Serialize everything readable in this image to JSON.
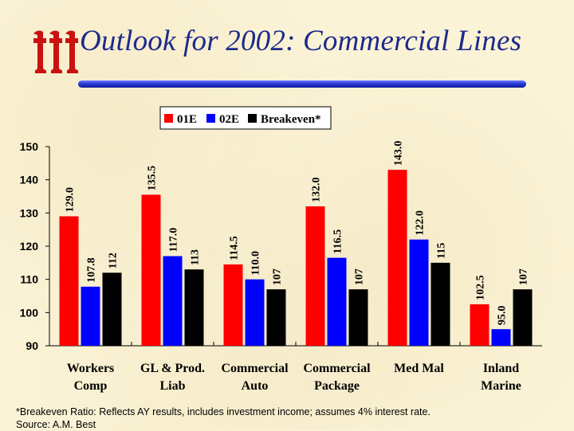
{
  "title": "Outlook for 2002: Commercial Lines",
  "footnote": "*Breakeven Ratio: Reflects AY results, includes investment income; assumes 4% interest rate.",
  "source": "Source:  A.M. Best",
  "colors": {
    "title": "#1d2a8a",
    "bar_01E": "#ff0000",
    "bar_02E": "#0000ff",
    "bar_breakeven": "#000000",
    "logo": "#cc1111",
    "title_bar": "#2a3ad8"
  },
  "chart_data": {
    "type": "bar",
    "title": "",
    "xlabel": "",
    "ylabel": "",
    "ylim": [
      90,
      150
    ],
    "yticks": [
      90,
      100,
      110,
      120,
      130,
      140,
      150
    ],
    "legend_position": "top-center",
    "grid": false,
    "categories": [
      [
        "Workers",
        "Comp"
      ],
      [
        "GL & Prod.",
        "Liab"
      ],
      [
        "Commercial",
        "Auto"
      ],
      [
        "Commercial",
        "Package"
      ],
      [
        "Med Mal",
        ""
      ],
      [
        "Inland",
        "Marine"
      ]
    ],
    "series": [
      {
        "name": "01E",
        "color": "#ff0000",
        "values": [
          129.0,
          135.5,
          114.5,
          132.0,
          143.0,
          102.5
        ],
        "labels": [
          "129.0",
          "135.5",
          "114.5",
          "132.0",
          "143.0",
          "102.5"
        ]
      },
      {
        "name": "02E",
        "color": "#0000ff",
        "values": [
          107.8,
          117.0,
          110.0,
          116.5,
          122.0,
          95.0
        ],
        "labels": [
          "107.8",
          "117.0",
          "110.0",
          "116.5",
          "122.0",
          "95.0"
        ]
      },
      {
        "name": "Breakeven*",
        "color": "#000000",
        "values": [
          112,
          113,
          107,
          107,
          115,
          107
        ],
        "labels": [
          "112",
          "113",
          "107",
          "107",
          "115",
          "107"
        ]
      }
    ]
  }
}
